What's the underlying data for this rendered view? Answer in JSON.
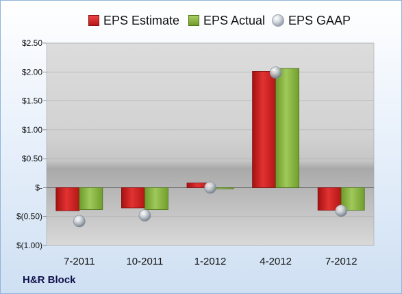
{
  "chart_data": {
    "type": "bar",
    "categories": [
      "7-2011",
      "10-2011",
      "1-2012",
      "4-2012",
      "7-2012"
    ],
    "series": [
      {
        "name": "EPS Estimate",
        "kind": "bar",
        "color": "#d42020",
        "values": [
          -0.4,
          -0.35,
          0.08,
          2.01,
          -0.39
        ]
      },
      {
        "name": "EPS Actual",
        "kind": "bar",
        "color": "#8dba43",
        "values": [
          -0.38,
          -0.38,
          -0.02,
          2.06,
          -0.39
        ]
      },
      {
        "name": "EPS GAAP",
        "kind": "marker",
        "color": "#a8b0b9",
        "values": [
          -0.58,
          -0.48,
          0.0,
          1.99,
          -0.4
        ]
      }
    ],
    "yticks": [
      "$2.50",
      "$2.00",
      "$1.50",
      "$1.00",
      "$0.50",
      "$-",
      "$(0.50)",
      "$(1.00)"
    ],
    "ytick_values": [
      2.5,
      2.0,
      1.5,
      1.0,
      0.5,
      0.0,
      -0.5,
      -1.0
    ],
    "ylim": [
      -1.0,
      2.5
    ],
    "grid": true,
    "legend_position": "top",
    "title": "",
    "xlabel": "",
    "ylabel": ""
  },
  "legend": {
    "estimate": "EPS Estimate",
    "actual": "EPS Actual",
    "gaap": "EPS GAAP"
  },
  "company": "H&R Block"
}
